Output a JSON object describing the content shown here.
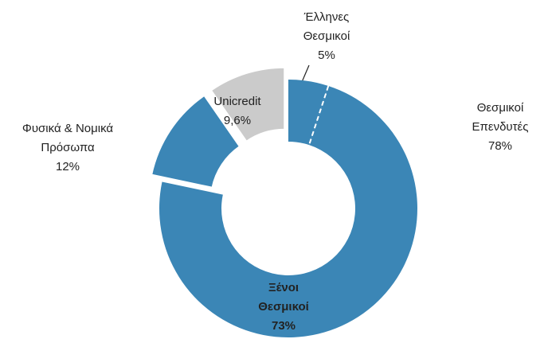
{
  "chart_data": {
    "type": "donut",
    "categories": [
      [
        "Έλληνες",
        "Θεσμικοί"
      ],
      [
        "Ξένοι",
        "Θεσμικοί"
      ],
      [
        "Φυσικά & Νομικά",
        "Πρόσωπα"
      ],
      [
        "Unicredit"
      ]
    ],
    "values": [
      5,
      73,
      12,
      9.6
    ],
    "value_labels": [
      "5%",
      "73%",
      "12%",
      "9,6%"
    ],
    "colors": [
      "#3b86b6",
      "#3b86b6",
      "#3b86b6",
      "#cbcbcb"
    ],
    "exploded": [
      false,
      false,
      true,
      true
    ],
    "annotations": [
      {
        "text": [
          "Θεσμικοί",
          "Επενδυτές",
          "78%"
        ]
      }
    ]
  }
}
